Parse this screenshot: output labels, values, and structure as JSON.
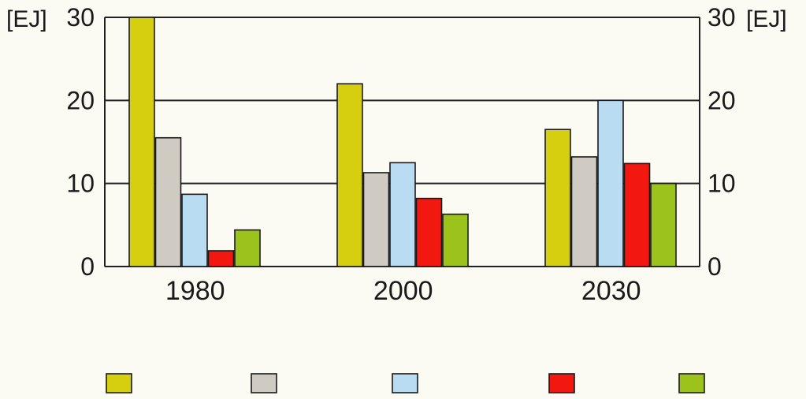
{
  "chart_data": {
    "type": "bar",
    "categories": [
      "1980",
      "2000",
      "2030"
    ],
    "series": [
      {
        "color": "#d6cf10",
        "values": [
          30,
          22,
          16.5
        ]
      },
      {
        "color": "#cfcac2",
        "values": [
          15.5,
          11.3,
          13.2
        ]
      },
      {
        "color": "#b9dcf2",
        "values": [
          8.7,
          12.5,
          20
        ]
      },
      {
        "color": "#f2170f",
        "values": [
          1.9,
          8.2,
          12.4
        ]
      },
      {
        "color": "#9cc21c",
        "values": [
          4.4,
          6.3,
          10
        ]
      }
    ],
    "ylim": [
      0,
      30
    ],
    "yticks": [
      0,
      10,
      20,
      30
    ],
    "ylabel_left": "[EJ]",
    "ylabel_right": "[EJ]",
    "grid": true,
    "legend_position": "bottom"
  }
}
